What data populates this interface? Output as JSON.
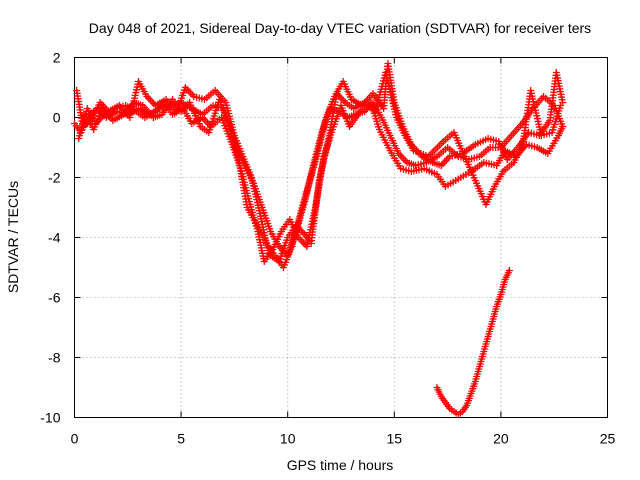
{
  "chart_data": {
    "type": "scatter",
    "title": "Day 048 of 2021, Sidereal Day-to-day VTEC variation (SDTVAR) for receiver ters",
    "xlabel": "GPS time / hours",
    "ylabel": "SDTVAR / TECUs",
    "xlim": [
      0,
      25
    ],
    "ylim": [
      -10,
      2
    ],
    "xticks": [
      0,
      5,
      10,
      15,
      20,
      25
    ],
    "yticks": [
      -10,
      -8,
      -6,
      -4,
      -2,
      0,
      2
    ],
    "grid": true,
    "marker": "+",
    "color": "#ff0000",
    "series": [
      {
        "name": "trace-a",
        "points": [
          [
            0.0,
            -0.2
          ],
          [
            0.3,
            -0.5
          ],
          [
            0.7,
            0.1
          ],
          [
            1.1,
            0.3
          ],
          [
            1.5,
            0.0
          ],
          [
            2.0,
            0.2
          ],
          [
            2.5,
            0.1
          ],
          [
            3.0,
            0.3
          ],
          [
            3.5,
            0.1
          ],
          [
            4.0,
            0.3
          ],
          [
            4.5,
            0.4
          ],
          [
            5.0,
            0.5
          ],
          [
            5.5,
            0.3
          ],
          [
            6.0,
            0.1
          ],
          [
            6.5,
            0.4
          ],
          [
            7.0,
            0.3
          ],
          [
            7.3,
            -0.3
          ],
          [
            7.6,
            -1.0
          ],
          [
            8.0,
            -1.6
          ],
          [
            8.4,
            -2.2
          ],
          [
            8.8,
            -3.0
          ],
          [
            9.2,
            -3.8
          ],
          [
            9.6,
            -4.3
          ],
          [
            10.0,
            -4.6
          ],
          [
            10.4,
            -3.8
          ],
          [
            10.8,
            -2.8
          ],
          [
            11.2,
            -1.6
          ],
          [
            11.6,
            -0.5
          ],
          [
            12.0,
            0.3
          ],
          [
            12.4,
            0.2
          ],
          [
            12.8,
            0.0
          ],
          [
            13.2,
            0.1
          ],
          [
            13.6,
            0.2
          ],
          [
            14.0,
            0.5
          ],
          [
            14.4,
            0.0
          ],
          [
            14.8,
            -0.6
          ],
          [
            15.2,
            -1.2
          ],
          [
            15.6,
            -1.5
          ],
          [
            16.0,
            -1.6
          ],
          [
            16.5,
            -1.5
          ],
          [
            17.0,
            -1.3
          ],
          [
            17.5,
            -1.0
          ],
          [
            18.0,
            -1.3
          ],
          [
            18.5,
            -1.4
          ],
          [
            19.0,
            -1.3
          ],
          [
            19.5,
            -1.0
          ],
          [
            20.0,
            -1.0
          ],
          [
            20.5,
            -0.6
          ],
          [
            21.0,
            -0.2
          ],
          [
            21.5,
            0.3
          ],
          [
            22.0,
            0.7
          ],
          [
            22.5,
            0.4
          ],
          [
            22.9,
            -0.3
          ]
        ]
      },
      {
        "name": "trace-b",
        "points": [
          [
            0.1,
            0.9
          ],
          [
            0.4,
            -0.3
          ],
          [
            0.8,
            -0.1
          ],
          [
            1.2,
            0.5
          ],
          [
            1.6,
            0.2
          ],
          [
            2.1,
            0.4
          ],
          [
            2.6,
            0.0
          ],
          [
            3.0,
            1.2
          ],
          [
            3.4,
            0.7
          ],
          [
            3.8,
            0.4
          ],
          [
            4.3,
            0.6
          ],
          [
            4.8,
            0.2
          ],
          [
            5.2,
            1.0
          ],
          [
            5.6,
            0.7
          ],
          [
            6.1,
            0.6
          ],
          [
            6.6,
            0.9
          ],
          [
            7.1,
            0.5
          ],
          [
            7.5,
            -0.6
          ],
          [
            7.9,
            -1.3
          ],
          [
            8.3,
            -2.0
          ],
          [
            8.7,
            -3.2
          ],
          [
            9.0,
            -4.2
          ],
          [
            9.4,
            -4.6
          ],
          [
            9.8,
            -5.0
          ],
          [
            10.2,
            -4.3
          ],
          [
            10.6,
            -3.2
          ],
          [
            11.0,
            -2.2
          ],
          [
            11.4,
            -1.2
          ],
          [
            11.8,
            0.0
          ],
          [
            12.2,
            0.7
          ],
          [
            12.6,
            1.2
          ],
          [
            13.0,
            0.6
          ],
          [
            13.5,
            0.4
          ],
          [
            14.0,
            0.8
          ],
          [
            14.5,
            0.3
          ],
          [
            14.7,
            1.8
          ],
          [
            15.0,
            0.5
          ],
          [
            15.4,
            -0.3
          ],
          [
            15.8,
            -0.9
          ],
          [
            16.3,
            -1.3
          ],
          [
            16.8,
            -1.5
          ],
          [
            17.2,
            -1.6
          ],
          [
            17.6,
            -1.3
          ],
          [
            18.2,
            -1.2
          ],
          [
            18.8,
            -0.9
          ],
          [
            19.4,
            -0.7
          ],
          [
            19.9,
            -0.8
          ],
          [
            20.3,
            -1.4
          ],
          [
            20.8,
            -1.0
          ],
          [
            21.3,
            -0.5
          ],
          [
            21.8,
            -0.6
          ],
          [
            22.3,
            -0.1
          ],
          [
            22.6,
            1.5
          ],
          [
            22.9,
            0.5
          ]
        ]
      },
      {
        "name": "trace-c",
        "points": [
          [
            0.2,
            -0.7
          ],
          [
            0.6,
            0.3
          ],
          [
            1.0,
            -0.2
          ],
          [
            1.4,
            0.1
          ],
          [
            1.9,
            0.3
          ],
          [
            2.4,
            0.4
          ],
          [
            2.9,
            0.2
          ],
          [
            3.3,
            0.0
          ],
          [
            3.8,
            0.2
          ],
          [
            4.2,
            0.5
          ],
          [
            4.6,
            0.1
          ],
          [
            5.1,
            0.3
          ],
          [
            5.5,
            -0.2
          ],
          [
            6.0,
            0.0
          ],
          [
            6.4,
            -0.3
          ],
          [
            6.9,
            0.0
          ],
          [
            7.4,
            -0.9
          ],
          [
            7.8,
            -1.7
          ],
          [
            8.2,
            -2.8
          ],
          [
            8.6,
            -3.8
          ],
          [
            8.9,
            -4.8
          ],
          [
            9.3,
            -4.4
          ],
          [
            9.7,
            -3.8
          ],
          [
            10.1,
            -3.4
          ],
          [
            10.5,
            -4.0
          ],
          [
            10.9,
            -4.3
          ],
          [
            11.3,
            -3.0
          ],
          [
            11.7,
            -1.3
          ],
          [
            12.1,
            -0.4
          ],
          [
            12.5,
            0.4
          ],
          [
            12.9,
            -0.3
          ],
          [
            13.4,
            0.2
          ],
          [
            13.9,
            0.5
          ],
          [
            14.3,
            -0.4
          ],
          [
            14.8,
            -1.1
          ],
          [
            15.3,
            -1.7
          ],
          [
            15.8,
            -1.8
          ],
          [
            16.4,
            -1.7
          ],
          [
            17.0,
            -1.9
          ],
          [
            17.4,
            -2.3
          ],
          [
            18.6,
            -1.8
          ],
          [
            19.2,
            -1.5
          ],
          [
            19.8,
            -1.6
          ],
          [
            20.2,
            -1.1
          ],
          [
            20.7,
            -1.3
          ],
          [
            21.2,
            -0.9
          ],
          [
            21.7,
            -1.0
          ],
          [
            22.2,
            -1.2
          ],
          [
            22.7,
            -0.6
          ],
          [
            22.9,
            -0.3
          ]
        ]
      },
      {
        "name": "trace-d",
        "points": [
          [
            0.5,
            0.1
          ],
          [
            0.9,
            -0.4
          ],
          [
            1.3,
            0.3
          ],
          [
            1.8,
            -0.1
          ],
          [
            2.3,
            0.1
          ],
          [
            2.8,
            0.5
          ],
          [
            3.2,
            0.4
          ],
          [
            3.7,
            0.0
          ],
          [
            4.1,
            0.1
          ],
          [
            4.6,
            0.6
          ],
          [
            5.0,
            0.2
          ],
          [
            5.4,
            0.5
          ],
          [
            5.9,
            -0.3
          ],
          [
            6.3,
            -0.5
          ],
          [
            6.8,
            0.6
          ],
          [
            7.2,
            -0.2
          ],
          [
            7.7,
            -1.4
          ],
          [
            8.1,
            -3.0
          ],
          [
            8.5,
            -3.5
          ],
          [
            8.9,
            -4.0
          ],
          [
            9.2,
            -4.6
          ],
          [
            9.6,
            -4.8
          ],
          [
            10.0,
            -4.0
          ],
          [
            10.4,
            -3.6
          ],
          [
            10.8,
            -3.9
          ],
          [
            11.1,
            -4.2
          ],
          [
            11.5,
            -2.0
          ],
          [
            11.9,
            -0.8
          ],
          [
            12.3,
            0.8
          ],
          [
            12.7,
            0.5
          ],
          [
            13.1,
            0.3
          ],
          [
            13.6,
            0.5
          ],
          [
            14.1,
            0.2
          ],
          [
            14.6,
            1.5
          ],
          [
            15.1,
            0.0
          ],
          [
            15.5,
            -0.6
          ],
          [
            15.9,
            -1.1
          ],
          [
            16.6,
            -1.3
          ],
          [
            17.3,
            -0.8
          ],
          [
            17.8,
            -0.5
          ],
          [
            19.3,
            -2.9
          ],
          [
            19.7,
            -2.3
          ],
          [
            20.1,
            -1.8
          ],
          [
            20.6,
            -1.5
          ],
          [
            21.0,
            -1.0
          ],
          [
            21.4,
            0.9
          ],
          [
            21.9,
            -0.6
          ],
          [
            22.4,
            -0.5
          ],
          [
            22.8,
            0.4
          ]
        ]
      },
      {
        "name": "trace-e",
        "points": [
          [
            17.0,
            -9.0
          ],
          [
            17.2,
            -9.3
          ],
          [
            17.4,
            -9.5
          ],
          [
            17.6,
            -9.7
          ],
          [
            17.8,
            -9.8
          ],
          [
            18.0,
            -9.9
          ],
          [
            18.2,
            -9.8
          ],
          [
            18.4,
            -9.6
          ],
          [
            18.6,
            -9.2
          ],
          [
            18.8,
            -8.8
          ],
          [
            19.0,
            -8.3
          ],
          [
            19.2,
            -7.8
          ],
          [
            19.4,
            -7.3
          ],
          [
            19.6,
            -6.8
          ],
          [
            19.8,
            -6.3
          ],
          [
            20.0,
            -5.9
          ],
          [
            20.2,
            -5.4
          ],
          [
            20.4,
            -5.1
          ]
        ]
      }
    ]
  }
}
